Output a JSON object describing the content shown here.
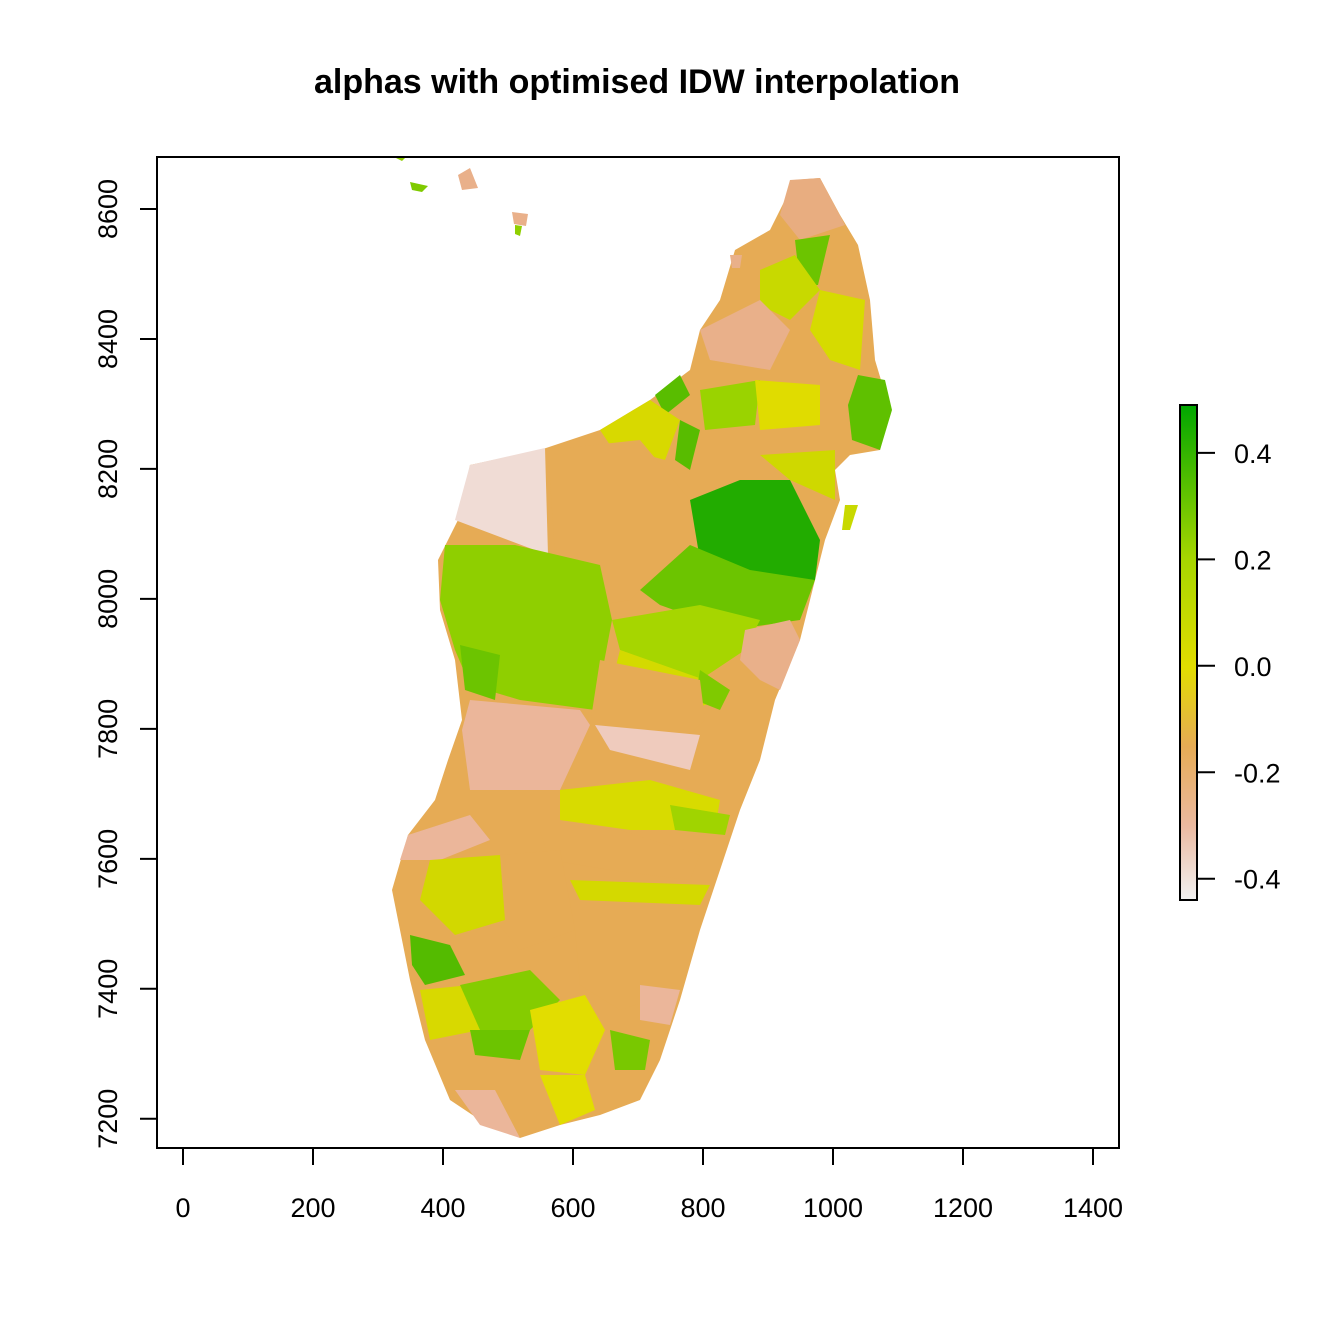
{
  "chart_data": {
    "type": "heatmap",
    "title": "alphas with optimised IDW interpolation",
    "xlabel": "",
    "ylabel": "",
    "xlim": [
      -40,
      1440
    ],
    "ylim": [
      7155,
      8680
    ],
    "x_ticks": [
      0,
      200,
      400,
      600,
      800,
      1000,
      1200,
      1400
    ],
    "y_ticks": [
      7200,
      7400,
      7600,
      7800,
      8000,
      8200,
      8400,
      8600
    ],
    "colorbar": {
      "range": [
        -0.44,
        0.49
      ],
      "ticks": [
        0.4,
        0.2,
        0.0,
        -0.2,
        -0.4
      ],
      "tick_labels": [
        "0.4",
        "0.2",
        "0.0",
        "-0.2",
        "-0.4"
      ],
      "colors": [
        {
          "value": -0.44,
          "color": "#f2f2f2"
        },
        {
          "value": -0.3,
          "color": "#ebb9a0"
        },
        {
          "value": -0.15,
          "color": "#e6ab55"
        },
        {
          "value": 0.0,
          "color": "#e2dd00"
        },
        {
          "value": 0.2,
          "color": "#a6d600"
        },
        {
          "value": 0.49,
          "color": "#00a600"
        }
      ]
    },
    "grid": false,
    "legend": "right"
  }
}
